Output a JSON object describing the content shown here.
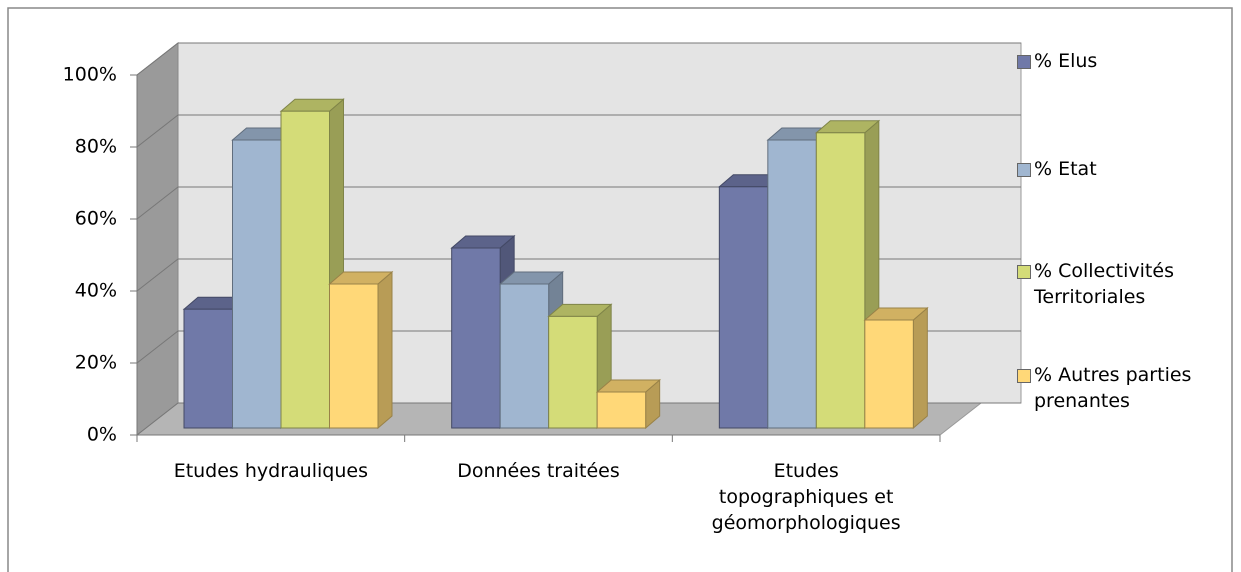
{
  "chart_data": {
    "type": "bar3d",
    "categories": [
      "Etudes hydrauliques",
      "Données traitées",
      "Etudes topographiques et géomorphologiques"
    ],
    "series": [
      {
        "name": "% Elus",
        "color": "#7079a8",
        "values": [
          33,
          50,
          67
        ]
      },
      {
        "name": "% Etat",
        "color": "#a0b6d0",
        "values": [
          80,
          40,
          80
        ]
      },
      {
        "name": "% Collectivités Territoriales",
        "color": "#d4dc78",
        "values": [
          88,
          31,
          82
        ]
      },
      {
        "name": "% Autres parties prenantes",
        "color": "#ffd878",
        "values": [
          40,
          10,
          30
        ]
      }
    ],
    "ylim": [
      0,
      100
    ],
    "yticks": [
      {
        "value": 0,
        "label": "0%"
      },
      {
        "value": 20,
        "label": "20%"
      },
      {
        "value": 40,
        "label": "40%"
      },
      {
        "value": 60,
        "label": "60%"
      },
      {
        "value": 80,
        "label": "80%"
      },
      {
        "value": 100,
        "label": "100%"
      }
    ],
    "grid": true,
    "legend": "right"
  }
}
